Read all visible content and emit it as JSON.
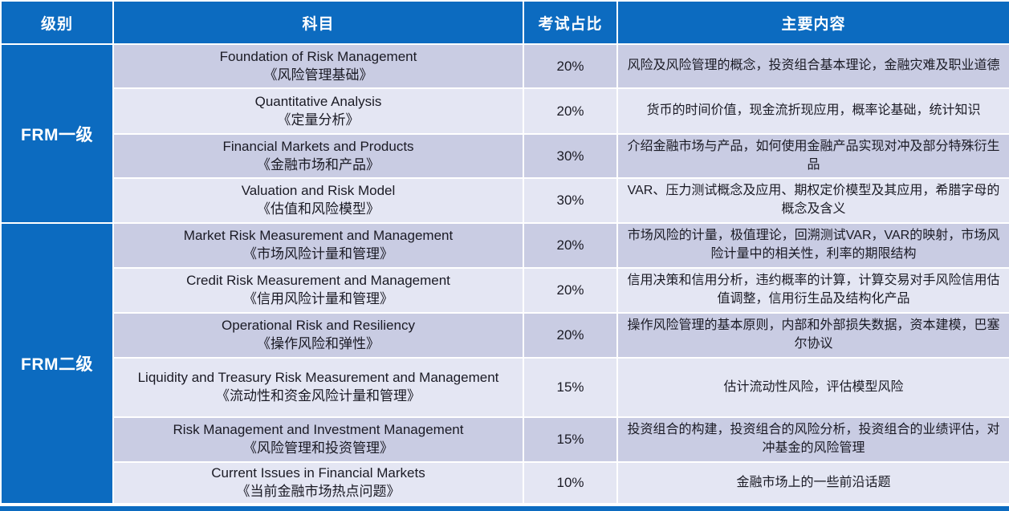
{
  "table": {
    "headers": [
      "级别",
      "科目",
      "考试占比",
      "主要内容"
    ],
    "groups": [
      {
        "level": "FRM一级",
        "rows": [
          {
            "subject_en": "Foundation of Risk Management",
            "subject_cn": "《风险管理基础》",
            "weight": "20%",
            "content": "风险及风险管理的概念，投资组合基本理论，金融灾难及职业道德"
          },
          {
            "subject_en": "Quantitative Analysis",
            "subject_cn": "《定量分析》",
            "weight": "20%",
            "content": "货币的时间价值，现金流折现应用，概率论基础，统计知识"
          },
          {
            "subject_en": "Financial Markets and Products",
            "subject_cn": "《金融市场和产品》",
            "weight": "30%",
            "content": "介绍金融市场与产品，如何使用金融产品实现对冲及部分特殊衍生品"
          },
          {
            "subject_en": "Valuation and Risk Model",
            "subject_cn": "《估值和风险模型》",
            "weight": "30%",
            "content": "VAR、压力测试概念及应用、期权定价模型及其应用，希腊字母的概念及含义"
          }
        ]
      },
      {
        "level": "FRM二级",
        "rows": [
          {
            "subject_en": "Market Risk Measurement and Management",
            "subject_cn": "《市场风险计量和管理》",
            "weight": "20%",
            "content": "市场风险的计量，极值理论，回溯测试VAR，VAR的映射，市场风险计量中的相关性，利率的期限结构"
          },
          {
            "subject_en": "Credit Risk Measurement and Management",
            "subject_cn": "《信用风险计量和管理》",
            "weight": "20%",
            "content": "信用决策和信用分析，违约概率的计算，计算交易对手风险信用估值调整，信用衍生品及结构化产品"
          },
          {
            "subject_en": "Operational Risk and Resiliency",
            "subject_cn": "《操作风险和弹性》",
            "weight": "20%",
            "content": "操作风险管理的基本原则，内部和外部损失数据，资本建模，巴塞尔协议"
          },
          {
            "subject_en": "Liquidity and Treasury Risk Measurement and Management",
            "subject_cn": "《流动性和资金风险计量和管理》",
            "weight": "15%",
            "content": "估计流动性风险，评估模型风险"
          },
          {
            "subject_en": "Risk Management and Investment Management",
            "subject_cn": "《风险管理和投资管理》",
            "weight": "15%",
            "content": "投资组合的构建，投资组合的风险分析，投资组合的业绩评估，对冲基金的风险管理"
          },
          {
            "subject_en": "Current Issues in Financial Markets",
            "subject_cn": "《当前金融市场热点问题》",
            "weight": "10%",
            "content": "金融市场上的一些前沿话题"
          }
        ]
      }
    ],
    "colors": {
      "header_bg": "#0c6bc0",
      "row_dark": "#c9cce3",
      "row_light": "#e4e6f3",
      "header_text": "#ffffff",
      "body_text": "#1a1a24"
    }
  }
}
